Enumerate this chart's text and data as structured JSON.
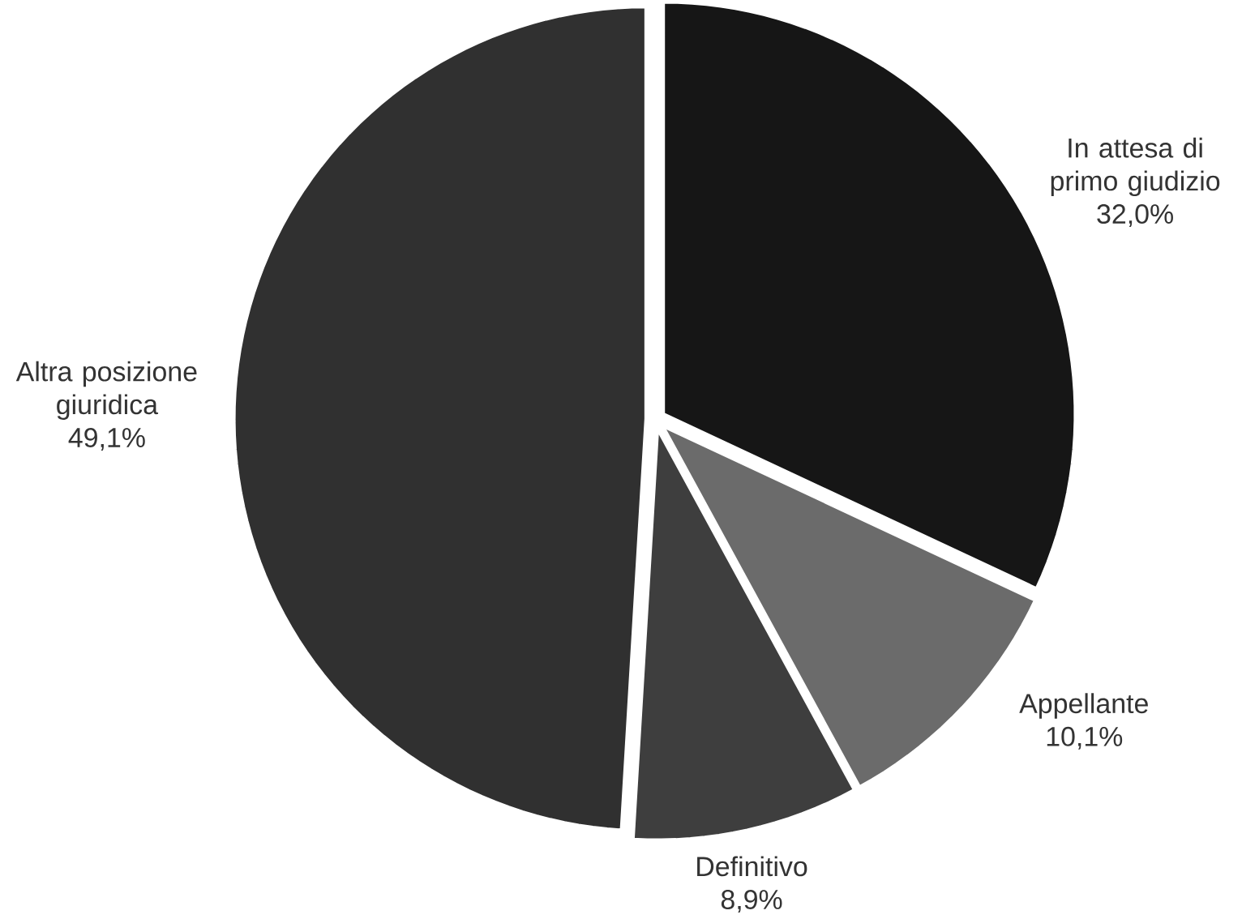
{
  "chart_data": {
    "type": "pie",
    "categories": [
      "In attesa di primo giudizio",
      "Appellante",
      "Definitivo",
      "Altra posizione giuridica"
    ],
    "values": [
      32.0,
      10.1,
      8.9,
      49.1
    ],
    "value_labels": [
      "32,0%",
      "10,1%",
      "8,9%",
      "49,1%"
    ],
    "colors": [
      "#161616",
      "#6b6b6b",
      "#3e3e3e",
      "#303030"
    ]
  }
}
